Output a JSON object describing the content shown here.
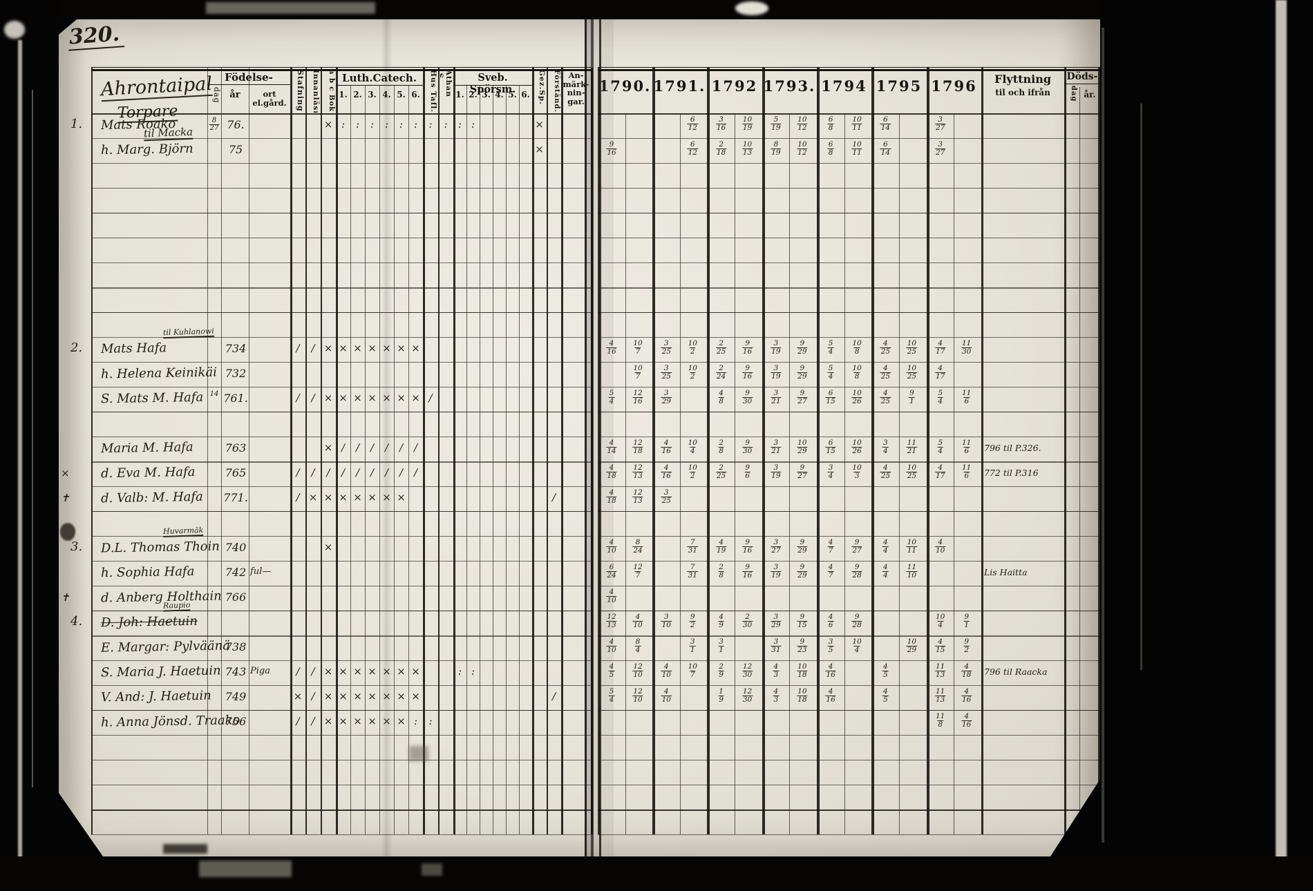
{
  "header": {
    "page_number": "320.",
    "title_lines": [
      "Ahrontaipal",
      "Torpare",
      "til Macka"
    ],
    "fodelse": "Födelse-",
    "dag": "dag",
    "ar": "år",
    "ort": "ort el.gård.",
    "stafning": "Stafning",
    "innanlasn": "Innanläsn.",
    "abc_bok": "a b c Bok",
    "luth": "Luth.Catech.",
    "luth_nums": [
      "1.",
      "2.",
      "3.",
      "4.",
      "5.",
      "6."
    ],
    "hus_tafl": "Hus Tafl.",
    "athan": "Athan .S.",
    "sveb": "Sveb. Spörsm.",
    "sveb_nums": [
      "1.",
      "2.",
      "3.",
      "4.",
      "5.",
      "6."
    ],
    "gez": "Gez.Sp.",
    "forstand": "Förständ.",
    "anmark": "An-\nmärk-\nnin-\ngar."
  },
  "right_header": {
    "years": [
      "1790.",
      "1791.",
      "1792",
      "1793.",
      "1794",
      "1795",
      "1796"
    ],
    "flytt_line1": "Flyttning",
    "flytt_line2": "til och ifrån",
    "dods": "Döds-",
    "dods_dag": "dag",
    "dods_ar": "år."
  },
  "ink_colors": {
    "print": "#17150f",
    "handwriting": "#23201a"
  },
  "rows": [
    {
      "r": 0,
      "num": "1.",
      "name": "Mats Roako",
      "dag": "8/27",
      "ar": "76.",
      "marks": [
        [
          2,
          "x"
        ],
        [
          3,
          ":"
        ],
        [
          4,
          ":"
        ],
        [
          5,
          ":"
        ],
        [
          6,
          ":"
        ],
        [
          7,
          ":"
        ],
        [
          8,
          ":"
        ],
        [
          9,
          ":"
        ],
        [
          10,
          ":"
        ],
        [
          11,
          ":"
        ],
        [
          12,
          ":"
        ],
        [
          17,
          "x"
        ]
      ],
      "y": [
        [
          "",
          ""
        ],
        [
          "",
          "6/12"
        ],
        [
          "3/16",
          "10/19"
        ],
        [
          "5/19",
          "10/12"
        ],
        [
          "6/8",
          "10/11"
        ],
        [
          "6/14",
          ""
        ],
        [
          "3/27",
          ""
        ]
      ]
    },
    {
      "r": 1,
      "name": "h. Marg. Björn",
      "ar": "75",
      "marks": [
        [
          17,
          "x"
        ]
      ],
      "y": [
        [
          "9/16",
          ""
        ],
        [
          "",
          "6/12"
        ],
        [
          "2/18",
          "10/13"
        ],
        [
          "8/19",
          "10/12"
        ],
        [
          "6/8",
          "10/11"
        ],
        [
          "6/14",
          ""
        ],
        [
          "3/27",
          ""
        ]
      ]
    },
    {
      "r": 9,
      "num": "2.",
      "sup": "til Kuhlanowi",
      "name": "Mats Hafa",
      "ar": "734",
      "marks": [
        [
          0,
          "/"
        ],
        [
          1,
          "/"
        ],
        [
          2,
          "x"
        ],
        [
          3,
          "x"
        ],
        [
          4,
          "x"
        ],
        [
          5,
          "x"
        ],
        [
          6,
          "x"
        ],
        [
          7,
          "x"
        ],
        [
          8,
          "x"
        ]
      ],
      "y": [
        [
          "4/16",
          "10/7"
        ],
        [
          "3/25",
          "10/2"
        ],
        [
          "2/25",
          "9/16"
        ],
        [
          "3/19",
          "9/29"
        ],
        [
          "5/4",
          "10/8"
        ],
        [
          "4/25",
          "10/25"
        ],
        [
          "4/17",
          "11/30"
        ]
      ]
    },
    {
      "r": 10,
      "name": "h. Helena Keinikäi",
      "ar": "732",
      "marks": [],
      "y": [
        [
          "",
          "10/7"
        ],
        [
          "3/25",
          "10/2"
        ],
        [
          "2/24",
          "9/16"
        ],
        [
          "3/19",
          "9/29"
        ],
        [
          "5/4",
          "10/8"
        ],
        [
          "4/25",
          "10/25"
        ],
        [
          "4/17",
          ""
        ]
      ]
    },
    {
      "r": 11,
      "name": "S. Mats M. Hafa",
      "dag": "14",
      "ar": "761.",
      "marks": [
        [
          0,
          "/"
        ],
        [
          1,
          "/"
        ],
        [
          2,
          "x"
        ],
        [
          3,
          "x"
        ],
        [
          4,
          "x"
        ],
        [
          5,
          "x"
        ],
        [
          6,
          "x"
        ],
        [
          7,
          "x"
        ],
        [
          8,
          "x"
        ],
        [
          9,
          "/"
        ]
      ],
      "y": [
        [
          "5/4",
          "12/16"
        ],
        [
          "3/29",
          ""
        ],
        [
          "4/8",
          "9/30"
        ],
        [
          "3/21",
          "9/27"
        ],
        [
          "6/15",
          "10/26"
        ],
        [
          "4/25",
          "9/1"
        ],
        [
          "5/4",
          "11/6"
        ]
      ]
    },
    {
      "r": 13,
      "name": "Maria M. Hafa",
      "ar": "763",
      "marks": [
        [
          2,
          "x"
        ],
        [
          3,
          "/"
        ],
        [
          4,
          "/"
        ],
        [
          5,
          "/"
        ],
        [
          6,
          "/"
        ],
        [
          7,
          "/"
        ],
        [
          8,
          "/"
        ]
      ],
      "y": [
        [
          "4/14",
          "12/18"
        ],
        [
          "4/16",
          "10/4"
        ],
        [
          "2/8",
          "9/30"
        ],
        [
          "3/21",
          "10/29"
        ],
        [
          "6/15",
          "10/26"
        ],
        [
          "3/4",
          "11/21"
        ],
        [
          "5/4",
          "11/6"
        ]
      ],
      "flytt": "796 til P.326."
    },
    {
      "r": 14,
      "margin": "x",
      "name": "d. Eva M. Hafa",
      "ar": "765",
      "marks": [
        [
          0,
          "/"
        ],
        [
          1,
          "/"
        ],
        [
          2,
          "/"
        ],
        [
          3,
          "/"
        ],
        [
          4,
          "/"
        ],
        [
          5,
          "/"
        ],
        [
          6,
          "/"
        ],
        [
          7,
          "/"
        ],
        [
          8,
          "/"
        ]
      ],
      "y": [
        [
          "4/18",
          "12/13"
        ],
        [
          "4/16",
          "10/2"
        ],
        [
          "2/25",
          "9/6"
        ],
        [
          "3/19",
          "9/27"
        ],
        [
          "3/4",
          "10/3"
        ],
        [
          "4/25",
          "10/25"
        ],
        [
          "4/17",
          "11/6"
        ]
      ],
      "flytt": "772 til P.316"
    },
    {
      "r": 15,
      "margin": "+",
      "name": "d. Valb: M. Hafa",
      "ar": "771.",
      "marks": [
        [
          0,
          "/"
        ],
        [
          1,
          "x"
        ],
        [
          2,
          "x"
        ],
        [
          3,
          "x"
        ],
        [
          4,
          "x"
        ],
        [
          5,
          "x"
        ],
        [
          6,
          "x"
        ],
        [
          7,
          "x"
        ],
        [
          18,
          "/"
        ]
      ],
      "y": [
        [
          "4/18",
          "12/13"
        ],
        [
          "3/25",
          ""
        ],
        [
          "",
          ""
        ],
        [
          "",
          ""
        ],
        [
          "",
          ""
        ],
        [
          "",
          ""
        ],
        [
          "",
          ""
        ]
      ]
    },
    {
      "r": 17,
      "num": "3.",
      "sup": "Huvarmäk",
      "name": "D.L. Thomas Thoin",
      "ar": "740",
      "marks": [
        [
          2,
          "x"
        ]
      ],
      "y": [
        [
          "4/10",
          "8/24"
        ],
        [
          "",
          "7/31"
        ],
        [
          "4/19",
          "9/16"
        ],
        [
          "3/27",
          "9/29"
        ],
        [
          "4/7",
          "9/27"
        ],
        [
          "4/4",
          "10/11"
        ],
        [
          "4/10",
          ""
        ]
      ]
    },
    {
      "r": 18,
      "name": "h. Sophia Hafa",
      "ar": "742",
      "ort": "ful—",
      "marks": [],
      "y": [
        [
          "6/24",
          "12/7"
        ],
        [
          "",
          "7/31"
        ],
        [
          "2/8",
          "9/16"
        ],
        [
          "3/19",
          "9/29"
        ],
        [
          "4/7",
          "9/28"
        ],
        [
          "4/4",
          "11/10"
        ],
        [
          "",
          ""
        ]
      ],
      "flytt": "Lis Haitta"
    },
    {
      "r": 19,
      "margin": "+",
      "name": "d. Anberg Holthain",
      "ar": "766",
      "marks": [],
      "y": [
        [
          "4/10",
          ""
        ],
        [
          "",
          ""
        ],
        [
          "",
          ""
        ],
        [
          "",
          ""
        ],
        [
          "",
          ""
        ],
        [
          "",
          ""
        ],
        [
          "",
          ""
        ]
      ]
    },
    {
      "r": 20,
      "num": "4.",
      "sup": "Raupio",
      "name": "D. Joh: Haetuin",
      "struck": true,
      "marks": [],
      "y": [
        [
          "12/13",
          "4/10"
        ],
        [
          "3/10",
          "9/2"
        ],
        [
          "4/9",
          "2/30"
        ],
        [
          "3/29",
          "9/15"
        ],
        [
          "4/6",
          "9/28"
        ],
        [
          "",
          ""
        ],
        [
          "10/4",
          "9/1"
        ]
      ]
    },
    {
      "r": 21,
      "name": "E. Margar: Pylväänä",
      "ar": "738",
      "marks": [],
      "y": [
        [
          "4/10",
          "8/4"
        ],
        [
          "",
          "3/1"
        ],
        [
          "3/1",
          ""
        ],
        [
          "3/31",
          "9/23"
        ],
        [
          "3/5",
          "10/4"
        ],
        [
          "",
          "10/29"
        ],
        [
          "4/15",
          "9/2"
        ]
      ]
    },
    {
      "r": 22,
      "name": "S. Maria J. Haetuin",
      "ar": "743",
      "ort": "Piga",
      "marks": [
        [
          0,
          "/"
        ],
        [
          1,
          "/"
        ],
        [
          2,
          "x"
        ],
        [
          3,
          "x"
        ],
        [
          4,
          "x"
        ],
        [
          5,
          "x"
        ],
        [
          6,
          "x"
        ],
        [
          7,
          "x"
        ],
        [
          8,
          "x"
        ],
        [
          11,
          ":"
        ],
        [
          12,
          ":"
        ]
      ],
      "y": [
        [
          "4/5",
          "12/10"
        ],
        [
          "4/10",
          "10/7"
        ],
        [
          "2/9",
          "12/30"
        ],
        [
          "4/3",
          "10/18"
        ],
        [
          "4/16",
          ""
        ],
        [
          "4/5",
          ""
        ],
        [
          "11/13",
          "4/18"
        ]
      ],
      "flytt": "796 til Raacka"
    },
    {
      "r": 23,
      "name": "V. And: J. Haetuin",
      "ar": "749",
      "marks": [
        [
          0,
          "x"
        ],
        [
          1,
          "/"
        ],
        [
          2,
          "x"
        ],
        [
          3,
          "x"
        ],
        [
          4,
          "x"
        ],
        [
          5,
          "x"
        ],
        [
          6,
          "x"
        ],
        [
          7,
          "x"
        ],
        [
          8,
          "x"
        ],
        [
          18,
          "/"
        ]
      ],
      "y": [
        [
          "5/4",
          "12/10"
        ],
        [
          "4/10",
          ""
        ],
        [
          "1/9",
          "12/30"
        ],
        [
          "4/3",
          "10/18"
        ],
        [
          "4/16",
          ""
        ],
        [
          "4/5",
          ""
        ],
        [
          "11/13",
          "4/16"
        ]
      ]
    },
    {
      "r": 24,
      "name": "h. Anna Jönsd. Traako",
      "ar": "756",
      "marks": [
        [
          0,
          "/"
        ],
        [
          1,
          "/"
        ],
        [
          2,
          "x"
        ],
        [
          3,
          "x"
        ],
        [
          4,
          "x"
        ],
        [
          5,
          "x"
        ],
        [
          6,
          "x"
        ],
        [
          7,
          "x"
        ],
        [
          8,
          ":"
        ],
        [
          9,
          ":"
        ]
      ],
      "y": [
        [
          "",
          ""
        ],
        [
          "",
          ""
        ],
        [
          "",
          ""
        ],
        [
          "",
          ""
        ],
        [
          "",
          ""
        ],
        [
          "",
          ""
        ],
        [
          "11/8",
          "4/16"
        ]
      ]
    }
  ]
}
